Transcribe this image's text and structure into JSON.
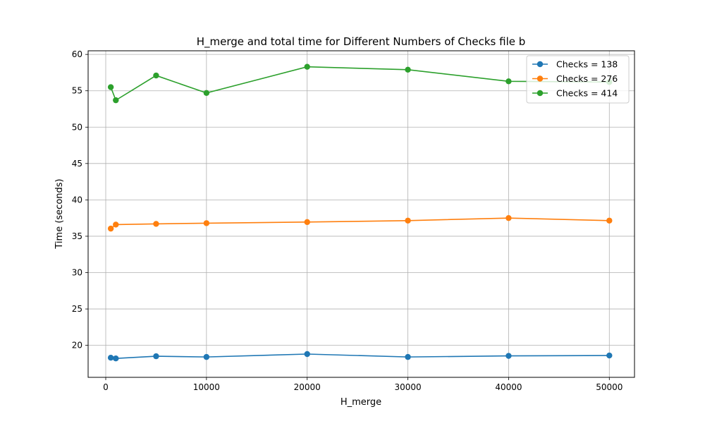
{
  "chart_data": {
    "type": "line",
    "title": "H_merge and total time for Different Numbers of Checks file b",
    "xlabel": "H_merge",
    "ylabel": "Time (seconds)",
    "xlim": [
      -1750,
      52500
    ],
    "ylim": [
      15.6,
      60.5
    ],
    "xticks": [
      0,
      10000,
      20000,
      30000,
      40000,
      50000
    ],
    "yticks": [
      20,
      25,
      30,
      35,
      40,
      45,
      50,
      55,
      60
    ],
    "grid": true,
    "legend_position": "top-right",
    "x": [
      500,
      1000,
      5000,
      10000,
      20000,
      30000,
      40000,
      50000
    ],
    "series": [
      {
        "name": "Checks = 138",
        "color": "#1f77b4",
        "values": [
          18.3,
          18.2,
          18.5,
          18.4,
          18.8,
          18.4,
          18.55,
          18.6
        ]
      },
      {
        "name": "Checks = 276",
        "color": "#ff7f0e",
        "values": [
          36.05,
          36.6,
          36.7,
          36.8,
          36.95,
          37.15,
          37.5,
          37.15
        ]
      },
      {
        "name": "Checks = 414",
        "color": "#2ca02c",
        "values": [
          55.5,
          53.7,
          57.1,
          54.7,
          58.3,
          57.9,
          56.3,
          56.2
        ]
      }
    ]
  }
}
